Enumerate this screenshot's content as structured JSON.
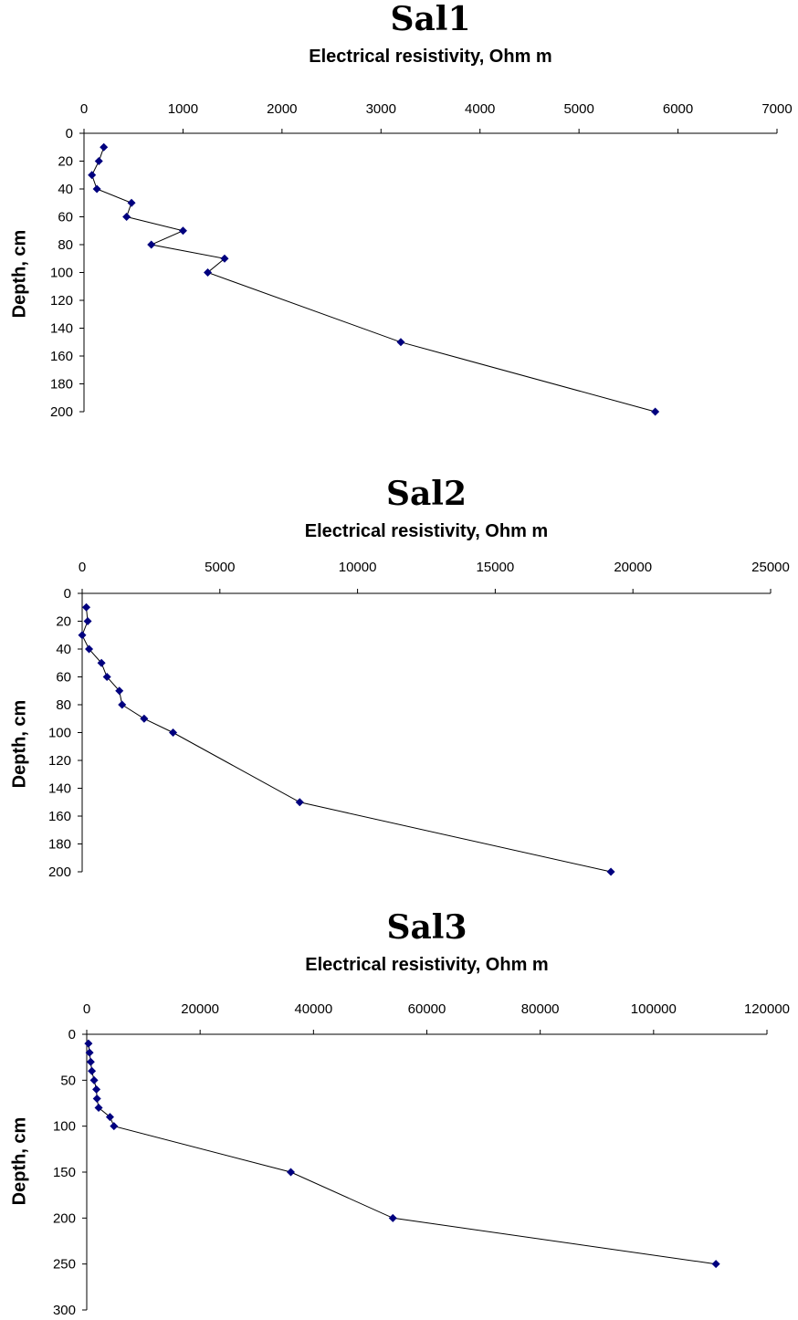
{
  "chart_data": [
    {
      "type": "line",
      "title": "Sal1",
      "xlabel": "Electrical resistivity, Ohm m",
      "ylabel": "Depth, cm",
      "x_axis_position": "top",
      "y_axis_reversed": true,
      "xlim": [
        0,
        7000
      ],
      "ylim": [
        0,
        200
      ],
      "xticks": [
        0,
        1000,
        2000,
        3000,
        4000,
        5000,
        6000,
        7000
      ],
      "yticks": [
        0,
        20,
        40,
        60,
        80,
        100,
        120,
        140,
        160,
        180,
        200
      ],
      "grid": false,
      "marker_color": "#00007f",
      "line_color": "#000000",
      "series": [
        {
          "x": [
            200,
            150,
            80,
            130,
            480,
            430,
            1000,
            680,
            1420,
            1250,
            3200,
            5770
          ],
          "y": [
            10,
            20,
            30,
            40,
            50,
            60,
            70,
            80,
            90,
            100,
            150,
            200
          ]
        }
      ]
    },
    {
      "type": "line",
      "title": "Sal2",
      "xlabel": "Electrical resistivity, Ohm m",
      "ylabel": "Depth, cm",
      "x_axis_position": "top",
      "y_axis_reversed": true,
      "xlim": [
        0,
        25000
      ],
      "ylim": [
        0,
        200
      ],
      "xticks": [
        0,
        5000,
        10000,
        15000,
        20000,
        25000
      ],
      "yticks": [
        0,
        20,
        40,
        60,
        80,
        100,
        120,
        140,
        160,
        180,
        200
      ],
      "grid": false,
      "marker_color": "#00007f",
      "line_color": "#000000",
      "series": [
        {
          "x": [
            150,
            200,
            0,
            250,
            700,
            900,
            1350,
            1450,
            2250,
            3300,
            7900,
            19200
          ],
          "y": [
            10,
            20,
            30,
            40,
            50,
            60,
            70,
            80,
            90,
            100,
            150,
            200
          ]
        }
      ]
    },
    {
      "type": "line",
      "title": "Sal3",
      "xlabel": "Electrical resistivity, Ohm m",
      "ylabel": "Depth, cm",
      "x_axis_position": "top",
      "y_axis_reversed": true,
      "xlim": [
        0,
        120000
      ],
      "ylim": [
        0,
        300
      ],
      "xticks": [
        0,
        20000,
        40000,
        60000,
        80000,
        100000,
        120000
      ],
      "yticks": [
        0,
        50,
        100,
        150,
        200,
        250,
        300
      ],
      "grid": false,
      "marker_color": "#00007f",
      "line_color": "#000000",
      "series": [
        {
          "x": [
            300,
            500,
            700,
            900,
            1300,
            1700,
            1800,
            2100,
            4100,
            4800,
            36000,
            54000,
            111000
          ],
          "y": [
            10,
            20,
            30,
            40,
            50,
            60,
            70,
            80,
            90,
            100,
            150,
            200,
            250
          ]
        }
      ]
    }
  ]
}
